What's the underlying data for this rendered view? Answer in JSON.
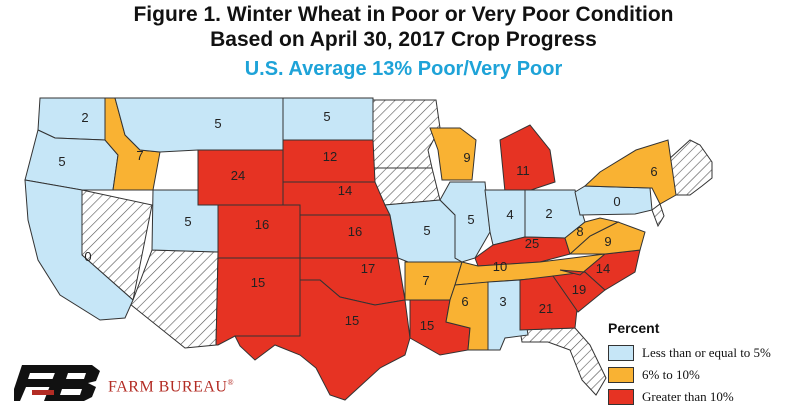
{
  "title": {
    "line1": "Figure 1. Winter Wheat in Poor or Very Poor Condition",
    "line2": "Based on April 30, 2017 Crop Progress",
    "subtitle": "U.S. Average 13% Poor/Very Poor"
  },
  "colors": {
    "low": "#c6e6f7",
    "mid": "#f9b233",
    "high": "#e63323",
    "accent": "#1ea3d8",
    "brand": "#b32c24"
  },
  "states": [
    {
      "name": "WA",
      "value": "2",
      "cat": "low"
    },
    {
      "name": "OR",
      "value": "5",
      "cat": "low"
    },
    {
      "name": "CA",
      "value": "0",
      "cat": "low"
    },
    {
      "name": "ID",
      "value": "7",
      "cat": "mid"
    },
    {
      "name": "MT",
      "value": "5",
      "cat": "low"
    },
    {
      "name": "ND",
      "value": "5",
      "cat": "low"
    },
    {
      "name": "WY",
      "value": "24",
      "cat": "high"
    },
    {
      "name": "UT",
      "value": "5",
      "cat": "low"
    },
    {
      "name": "CO",
      "value": "16",
      "cat": "high"
    },
    {
      "name": "SD",
      "value": "12",
      "cat": "high"
    },
    {
      "name": "NE",
      "value": "14",
      "cat": "high"
    },
    {
      "name": "KS",
      "value": "16",
      "cat": "high"
    },
    {
      "name": "OK",
      "value": "17",
      "cat": "high"
    },
    {
      "name": "NM",
      "value": "15",
      "cat": "high"
    },
    {
      "name": "TX",
      "value": "15",
      "cat": "high"
    },
    {
      "name": "MO",
      "value": "5",
      "cat": "low"
    },
    {
      "name": "AR",
      "value": "7",
      "cat": "mid"
    },
    {
      "name": "LA",
      "value": "15",
      "cat": "high"
    },
    {
      "name": "WI",
      "value": "9",
      "cat": "mid"
    },
    {
      "name": "IL",
      "value": "5",
      "cat": "low"
    },
    {
      "name": "MI",
      "value": "11",
      "cat": "high"
    },
    {
      "name": "IN",
      "value": "4",
      "cat": "low"
    },
    {
      "name": "OH",
      "value": "2",
      "cat": "low"
    },
    {
      "name": "KY",
      "value": "25",
      "cat": "high"
    },
    {
      "name": "TN",
      "value": "10",
      "cat": "mid"
    },
    {
      "name": "MS",
      "value": "6",
      "cat": "mid"
    },
    {
      "name": "AL",
      "value": "3",
      "cat": "low"
    },
    {
      "name": "GA",
      "value": "21",
      "cat": "high"
    },
    {
      "name": "SC",
      "value": "19",
      "cat": "high"
    },
    {
      "name": "NC",
      "value": "14",
      "cat": "high"
    },
    {
      "name": "VA",
      "value": "9",
      "cat": "mid"
    },
    {
      "name": "WV",
      "value": "8",
      "cat": "mid"
    },
    {
      "name": "PA",
      "value": "0",
      "cat": "low"
    },
    {
      "name": "NY",
      "value": "6",
      "cat": "mid"
    }
  ],
  "legend": {
    "title": "Percent",
    "items": [
      {
        "label": "Less than or equal to 5%",
        "color": "#c6e6f7"
      },
      {
        "label": "6% to 10%",
        "color": "#f9b233"
      },
      {
        "label": "Greater than 10%",
        "color": "#e63323"
      }
    ]
  },
  "brand": {
    "name": "FARM BUREAU",
    "mark": "®"
  }
}
